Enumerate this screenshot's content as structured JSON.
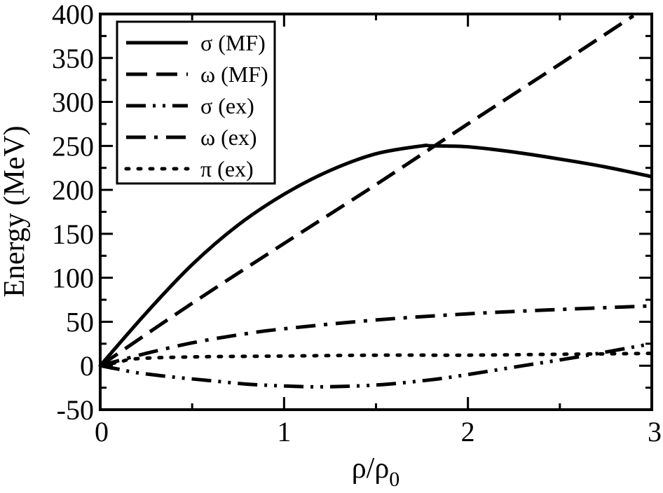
{
  "chart_data": {
    "type": "line",
    "title": "",
    "xlabel": "ρ/ρ",
    "xlabel_sub": "0",
    "ylabel": "Energy (MeV)",
    "xlim": [
      0,
      3
    ],
    "ylim": [
      -50,
      400
    ],
    "xticks": [
      0,
      1,
      2,
      3
    ],
    "yticks": [
      -50,
      0,
      50,
      100,
      150,
      200,
      250,
      300,
      350,
      400
    ],
    "xtick_labels": [
      "0",
      "1",
      "2",
      "3"
    ],
    "ytick_labels": [
      "-50",
      "0",
      "50",
      "100",
      "150",
      "200",
      "250",
      "300",
      "350",
      "400"
    ],
    "grid": false,
    "legend_position": "top-left",
    "series": [
      {
        "name": "σ (MF)",
        "style": "solid",
        "x": [
          0,
          0.25,
          0.5,
          0.75,
          1.0,
          1.25,
          1.5,
          1.75,
          1.8,
          2.0,
          2.25,
          2.5,
          2.75,
          3.0
        ],
        "y": [
          0,
          60,
          115,
          160,
          195,
          222,
          241,
          250,
          250,
          249,
          243,
          235,
          226,
          215
        ]
      },
      {
        "name": "ω (MF)",
        "style": "dashed",
        "x": [
          0,
          0.5,
          1.0,
          1.5,
          2.0,
          2.5,
          2.9
        ],
        "y": [
          0,
          71,
          139,
          206,
          275,
          343,
          398
        ]
      },
      {
        "name": "σ (ex)",
        "style": "dash-dot-dot",
        "x": [
          0,
          0.1,
          0.2,
          0.4,
          0.6,
          0.8,
          1.0,
          1.2,
          1.5,
          1.8,
          2.0,
          2.3,
          2.6,
          3.0
        ],
        "y": [
          0,
          -4,
          -8,
          -13,
          -17,
          -21,
          -23,
          -24,
          -22,
          -16,
          -10,
          0,
          10,
          25
        ]
      },
      {
        "name": "ω (ex)",
        "style": "dash-dot",
        "x": [
          0,
          0.25,
          0.5,
          0.75,
          1.0,
          1.5,
          2.0,
          2.5,
          3.0
        ],
        "y": [
          0,
          14,
          26,
          35,
          42,
          52,
          59,
          64,
          68
        ]
      },
      {
        "name": "π (ex)",
        "style": "dotted",
        "x": [
          0,
          0.1,
          0.2,
          0.5,
          1.0,
          1.5,
          2.0,
          2.5,
          3.0
        ],
        "y": [
          0,
          4,
          8,
          10,
          11,
          12,
          12,
          13,
          14
        ]
      }
    ]
  }
}
